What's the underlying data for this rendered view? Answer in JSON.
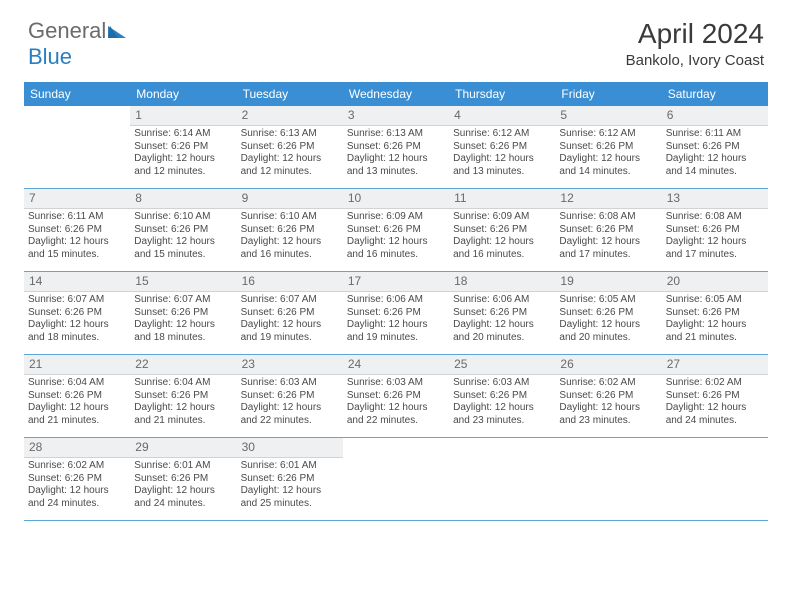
{
  "brand": {
    "part1": "General",
    "part2": "Blue"
  },
  "title": {
    "monthyear": "April 2024",
    "location": "Bankolo, Ivory Coast"
  },
  "colors": {
    "header_bg": "#3a8fd4",
    "header_text": "#ffffff",
    "cell_text": "#4a4a4a",
    "daynum_bg": "#eef0f1",
    "rule": "#5fa6d8",
    "brand_gray": "#6b6b6b",
    "brand_blue": "#2a7fbf"
  },
  "daynames": [
    "Sunday",
    "Monday",
    "Tuesday",
    "Wednesday",
    "Thursday",
    "Friday",
    "Saturday"
  ],
  "weeks": [
    [
      {
        "day": "",
        "sunrise": "",
        "sunset": "",
        "daylight": ""
      },
      {
        "day": "1",
        "sunrise": "Sunrise: 6:14 AM",
        "sunset": "Sunset: 6:26 PM",
        "daylight": "Daylight: 12 hours and 12 minutes."
      },
      {
        "day": "2",
        "sunrise": "Sunrise: 6:13 AM",
        "sunset": "Sunset: 6:26 PM",
        "daylight": "Daylight: 12 hours and 12 minutes."
      },
      {
        "day": "3",
        "sunrise": "Sunrise: 6:13 AM",
        "sunset": "Sunset: 6:26 PM",
        "daylight": "Daylight: 12 hours and 13 minutes."
      },
      {
        "day": "4",
        "sunrise": "Sunrise: 6:12 AM",
        "sunset": "Sunset: 6:26 PM",
        "daylight": "Daylight: 12 hours and 13 minutes."
      },
      {
        "day": "5",
        "sunrise": "Sunrise: 6:12 AM",
        "sunset": "Sunset: 6:26 PM",
        "daylight": "Daylight: 12 hours and 14 minutes."
      },
      {
        "day": "6",
        "sunrise": "Sunrise: 6:11 AM",
        "sunset": "Sunset: 6:26 PM",
        "daylight": "Daylight: 12 hours and 14 minutes."
      }
    ],
    [
      {
        "day": "7",
        "sunrise": "Sunrise: 6:11 AM",
        "sunset": "Sunset: 6:26 PM",
        "daylight": "Daylight: 12 hours and 15 minutes."
      },
      {
        "day": "8",
        "sunrise": "Sunrise: 6:10 AM",
        "sunset": "Sunset: 6:26 PM",
        "daylight": "Daylight: 12 hours and 15 minutes."
      },
      {
        "day": "9",
        "sunrise": "Sunrise: 6:10 AM",
        "sunset": "Sunset: 6:26 PM",
        "daylight": "Daylight: 12 hours and 16 minutes."
      },
      {
        "day": "10",
        "sunrise": "Sunrise: 6:09 AM",
        "sunset": "Sunset: 6:26 PM",
        "daylight": "Daylight: 12 hours and 16 minutes."
      },
      {
        "day": "11",
        "sunrise": "Sunrise: 6:09 AM",
        "sunset": "Sunset: 6:26 PM",
        "daylight": "Daylight: 12 hours and 16 minutes."
      },
      {
        "day": "12",
        "sunrise": "Sunrise: 6:08 AM",
        "sunset": "Sunset: 6:26 PM",
        "daylight": "Daylight: 12 hours and 17 minutes."
      },
      {
        "day": "13",
        "sunrise": "Sunrise: 6:08 AM",
        "sunset": "Sunset: 6:26 PM",
        "daylight": "Daylight: 12 hours and 17 minutes."
      }
    ],
    [
      {
        "day": "14",
        "sunrise": "Sunrise: 6:07 AM",
        "sunset": "Sunset: 6:26 PM",
        "daylight": "Daylight: 12 hours and 18 minutes."
      },
      {
        "day": "15",
        "sunrise": "Sunrise: 6:07 AM",
        "sunset": "Sunset: 6:26 PM",
        "daylight": "Daylight: 12 hours and 18 minutes."
      },
      {
        "day": "16",
        "sunrise": "Sunrise: 6:07 AM",
        "sunset": "Sunset: 6:26 PM",
        "daylight": "Daylight: 12 hours and 19 minutes."
      },
      {
        "day": "17",
        "sunrise": "Sunrise: 6:06 AM",
        "sunset": "Sunset: 6:26 PM",
        "daylight": "Daylight: 12 hours and 19 minutes."
      },
      {
        "day": "18",
        "sunrise": "Sunrise: 6:06 AM",
        "sunset": "Sunset: 6:26 PM",
        "daylight": "Daylight: 12 hours and 20 minutes."
      },
      {
        "day": "19",
        "sunrise": "Sunrise: 6:05 AM",
        "sunset": "Sunset: 6:26 PM",
        "daylight": "Daylight: 12 hours and 20 minutes."
      },
      {
        "day": "20",
        "sunrise": "Sunrise: 6:05 AM",
        "sunset": "Sunset: 6:26 PM",
        "daylight": "Daylight: 12 hours and 21 minutes."
      }
    ],
    [
      {
        "day": "21",
        "sunrise": "Sunrise: 6:04 AM",
        "sunset": "Sunset: 6:26 PM",
        "daylight": "Daylight: 12 hours and 21 minutes."
      },
      {
        "day": "22",
        "sunrise": "Sunrise: 6:04 AM",
        "sunset": "Sunset: 6:26 PM",
        "daylight": "Daylight: 12 hours and 21 minutes."
      },
      {
        "day": "23",
        "sunrise": "Sunrise: 6:03 AM",
        "sunset": "Sunset: 6:26 PM",
        "daylight": "Daylight: 12 hours and 22 minutes."
      },
      {
        "day": "24",
        "sunrise": "Sunrise: 6:03 AM",
        "sunset": "Sunset: 6:26 PM",
        "daylight": "Daylight: 12 hours and 22 minutes."
      },
      {
        "day": "25",
        "sunrise": "Sunrise: 6:03 AM",
        "sunset": "Sunset: 6:26 PM",
        "daylight": "Daylight: 12 hours and 23 minutes."
      },
      {
        "day": "26",
        "sunrise": "Sunrise: 6:02 AM",
        "sunset": "Sunset: 6:26 PM",
        "daylight": "Daylight: 12 hours and 23 minutes."
      },
      {
        "day": "27",
        "sunrise": "Sunrise: 6:02 AM",
        "sunset": "Sunset: 6:26 PM",
        "daylight": "Daylight: 12 hours and 24 minutes."
      }
    ],
    [
      {
        "day": "28",
        "sunrise": "Sunrise: 6:02 AM",
        "sunset": "Sunset: 6:26 PM",
        "daylight": "Daylight: 12 hours and 24 minutes."
      },
      {
        "day": "29",
        "sunrise": "Sunrise: 6:01 AM",
        "sunset": "Sunset: 6:26 PM",
        "daylight": "Daylight: 12 hours and 24 minutes."
      },
      {
        "day": "30",
        "sunrise": "Sunrise: 6:01 AM",
        "sunset": "Sunset: 6:26 PM",
        "daylight": "Daylight: 12 hours and 25 minutes."
      },
      {
        "day": "",
        "sunrise": "",
        "sunset": "",
        "daylight": ""
      },
      {
        "day": "",
        "sunrise": "",
        "sunset": "",
        "daylight": ""
      },
      {
        "day": "",
        "sunrise": "",
        "sunset": "",
        "daylight": ""
      },
      {
        "day": "",
        "sunrise": "",
        "sunset": "",
        "daylight": ""
      }
    ]
  ]
}
